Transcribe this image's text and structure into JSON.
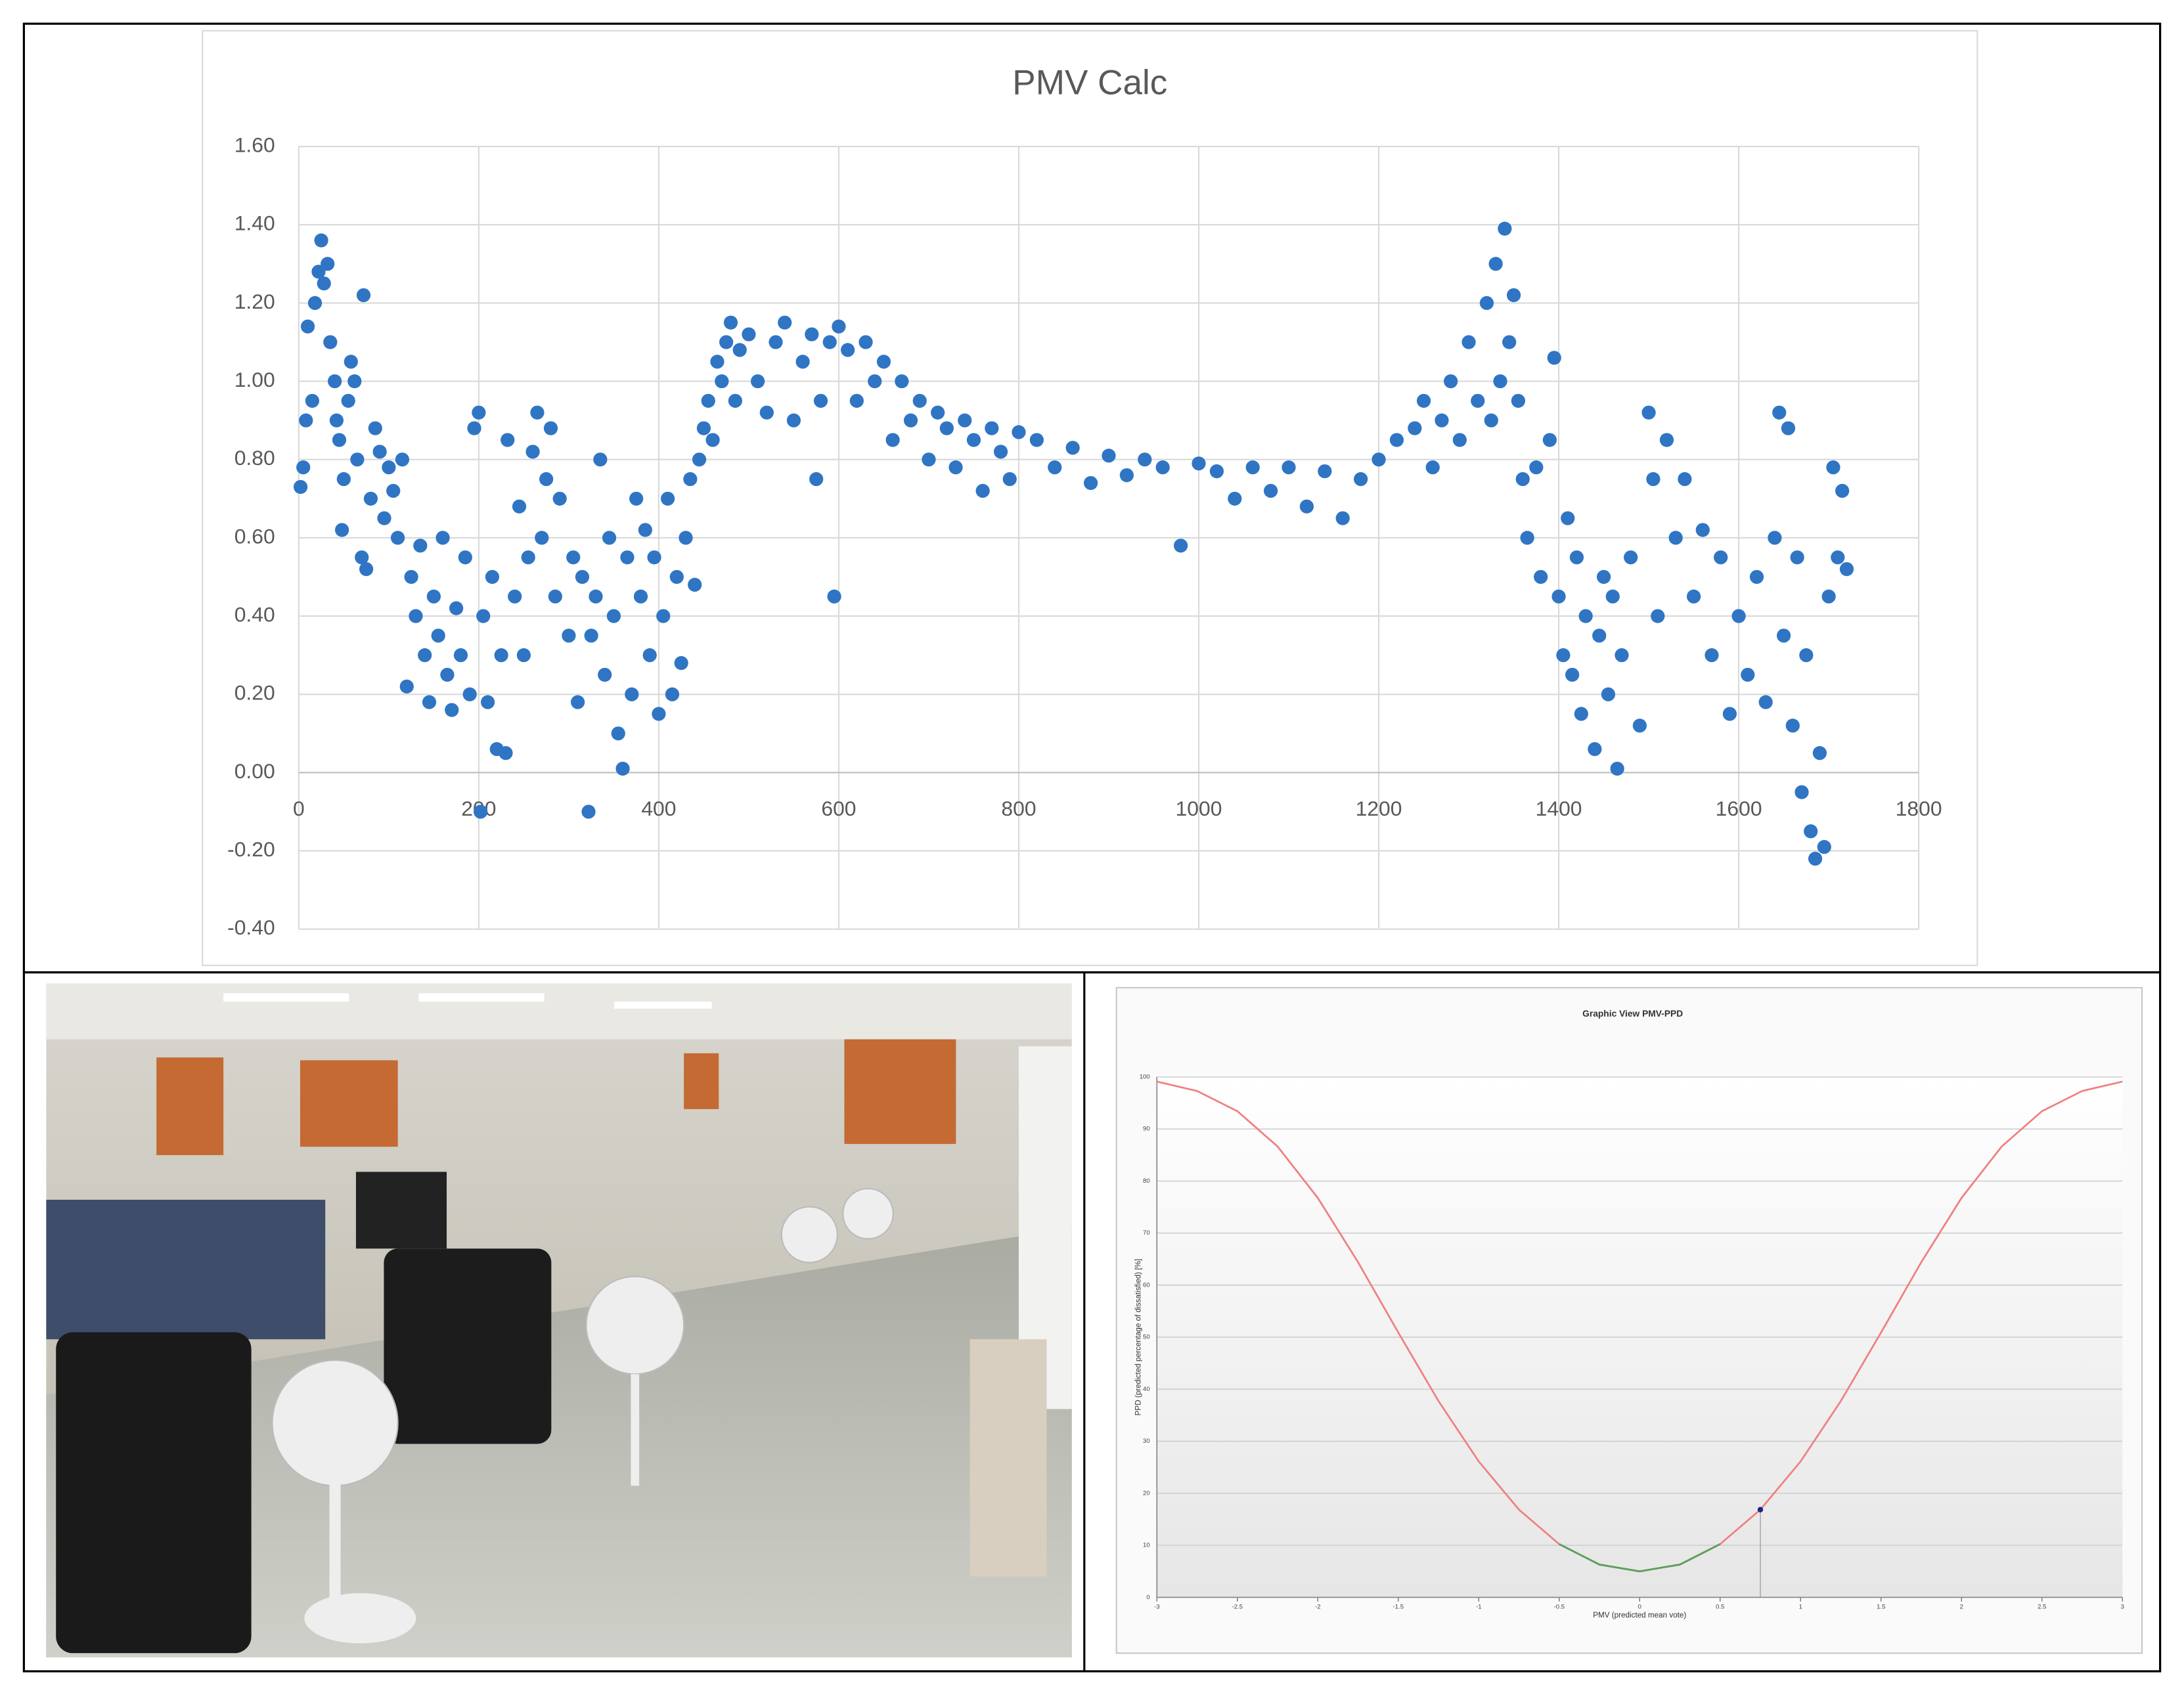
{
  "chart_data": [
    {
      "type": "scatter",
      "title": "PMV Calc",
      "color": "#2f75c4",
      "grid": true,
      "xlim": [
        0,
        1800
      ],
      "xticks": [
        0,
        200,
        400,
        600,
        800,
        1000,
        1200,
        1400,
        1600,
        1800
      ],
      "ylim": [
        -0.4,
        1.6
      ],
      "yticks": [
        {
          "value": -0.4,
          "label": "-0.40"
        },
        {
          "value": -0.2,
          "label": "-0.20"
        },
        {
          "value": 0,
          "label": "0.00"
        },
        {
          "value": 0.2,
          "label": "0.20"
        },
        {
          "value": 0.4,
          "label": "0.40"
        },
        {
          "value": 0.6,
          "label": "0.60"
        },
        {
          "value": 0.8,
          "label": "0.80"
        },
        {
          "value": 1.0,
          "label": "1.00"
        },
        {
          "value": 1.2,
          "label": "1.20"
        },
        {
          "value": 1.4,
          "label": "1.40"
        },
        {
          "value": 1.6,
          "label": "1.60"
        }
      ],
      "x": [
        2,
        5,
        8,
        10,
        15,
        18,
        22,
        25,
        28,
        32,
        35,
        40,
        42,
        45,
        48,
        50,
        55,
        58,
        62,
        65,
        70,
        72,
        75,
        80,
        85,
        90,
        95,
        100,
        105,
        110,
        115,
        120,
        125,
        130,
        135,
        140,
        145,
        150,
        155,
        160,
        165,
        170,
        175,
        180,
        185,
        190,
        195,
        200,
        202,
        205,
        210,
        215,
        220,
        225,
        230,
        232,
        240,
        245,
        250,
        255,
        260,
        265,
        270,
        275,
        280,
        285,
        290,
        300,
        305,
        310,
        315,
        322,
        325,
        330,
        335,
        340,
        345,
        350,
        355,
        360,
        365,
        370,
        375,
        380,
        385,
        390,
        395,
        400,
        405,
        410,
        415,
        420,
        425,
        430,
        435,
        440,
        445,
        450,
        455,
        460,
        465,
        470,
        475,
        480,
        485,
        490,
        500,
        510,
        520,
        530,
        540,
        550,
        560,
        570,
        575,
        580,
        590,
        595,
        600,
        610,
        620,
        630,
        640,
        650,
        660,
        670,
        680,
        690,
        700,
        710,
        720,
        730,
        740,
        750,
        760,
        770,
        780,
        790,
        800,
        820,
        840,
        860,
        880,
        900,
        920,
        940,
        960,
        980,
        1000,
        1020,
        1040,
        1060,
        1080,
        1100,
        1120,
        1140,
        1160,
        1180,
        1200,
        1220,
        1240,
        1250,
        1260,
        1270,
        1280,
        1290,
        1300,
        1310,
        1320,
        1325,
        1330,
        1335,
        1340,
        1345,
        1350,
        1355,
        1360,
        1365,
        1375,
        1380,
        1390,
        1395,
        1400,
        1405,
        1410,
        1415,
        1420,
        1425,
        1430,
        1440,
        1445,
        1450,
        1455,
        1460,
        1465,
        1470,
        1480,
        1490,
        1500,
        1505,
        1510,
        1520,
        1530,
        1540,
        1550,
        1560,
        1570,
        1580,
        1590,
        1600,
        1610,
        1620,
        1630,
        1640,
        1645,
        1650,
        1655,
        1660,
        1665,
        1670,
        1675,
        1680,
        1685,
        1690,
        1695,
        1700,
        1705,
        1710,
        1715,
        1720
      ],
      "values": [
        0.73,
        0.78,
        0.9,
        1.14,
        0.95,
        1.2,
        1.28,
        1.36,
        1.25,
        1.3,
        1.1,
        1.0,
        0.9,
        0.85,
        0.62,
        0.75,
        0.95,
        1.05,
        1.0,
        0.8,
        0.55,
        1.22,
        0.52,
        0.7,
        0.88,
        0.82,
        0.65,
        0.78,
        0.72,
        0.6,
        0.8,
        0.22,
        0.5,
        0.4,
        0.58,
        0.3,
        0.18,
        0.45,
        0.35,
        0.6,
        0.25,
        0.16,
        0.42,
        0.3,
        0.55,
        0.2,
        0.88,
        0.92,
        -0.1,
        0.4,
        0.18,
        0.5,
        0.06,
        0.3,
        0.05,
        0.85,
        0.45,
        0.68,
        0.3,
        0.55,
        0.82,
        0.92,
        0.6,
        0.75,
        0.88,
        0.45,
        0.7,
        0.35,
        0.55,
        0.18,
        0.5,
        -0.1,
        0.35,
        0.45,
        0.8,
        0.25,
        0.6,
        0.4,
        0.1,
        0.01,
        0.55,
        0.2,
        0.7,
        0.45,
        0.62,
        0.3,
        0.55,
        0.15,
        0.4,
        0.7,
        0.2,
        0.5,
        0.28,
        0.6,
        0.75,
        0.48,
        0.8,
        0.88,
        0.95,
        0.85,
        1.05,
        1.0,
        1.1,
        1.15,
        0.95,
        1.08,
        1.12,
        1.0,
        0.92,
        1.1,
        1.15,
        0.9,
        1.05,
        1.12,
        0.75,
        0.95,
        1.1,
        0.45,
        1.14,
        1.08,
        0.95,
        1.1,
        1.0,
        1.05,
        0.85,
        1.0,
        0.9,
        0.95,
        0.8,
        0.92,
        0.88,
        0.78,
        0.9,
        0.85,
        0.72,
        0.88,
        0.82,
        0.75,
        0.87,
        0.85,
        0.78,
        0.83,
        0.74,
        0.81,
        0.76,
        0.8,
        0.78,
        0.58,
        0.79,
        0.77,
        0.7,
        0.78,
        0.72,
        0.78,
        0.68,
        0.77,
        0.65,
        0.75,
        0.8,
        0.85,
        0.88,
        0.95,
        0.78,
        0.9,
        1.0,
        0.85,
        1.1,
        0.95,
        1.2,
        0.9,
        1.3,
        1.0,
        1.39,
        1.1,
        1.22,
        0.95,
        0.75,
        0.6,
        0.78,
        0.5,
        0.85,
        1.06,
        0.45,
        0.3,
        0.65,
        0.25,
        0.55,
        0.15,
        0.4,
        0.06,
        0.35,
        0.5,
        0.2,
        0.45,
        0.01,
        0.3,
        0.55,
        0.12,
        0.92,
        0.75,
        0.4,
        0.85,
        0.6,
        0.75,
        0.45,
        0.62,
        0.3,
        0.55,
        0.15,
        0.4,
        0.25,
        0.5,
        0.18,
        0.6,
        0.92,
        0.35,
        0.88,
        0.12,
        0.55,
        -0.05,
        0.3,
        -0.15,
        -0.22,
        0.05,
        -0.19,
        0.45,
        0.78,
        0.55,
        0.72,
        0.52
      ]
    },
    {
      "type": "line",
      "title": "Graphic View PMV-PPD",
      "x_label": "PMV (predicted mean vote)",
      "y_label": "PPD (predicted percentage of dissatisfied) [%]",
      "grid": true,
      "xlim": [
        -3,
        3
      ],
      "xticks": [
        -3,
        -2.5,
        -2,
        -1.5,
        -1,
        -0.5,
        0,
        0.5,
        1,
        1.5,
        2,
        2.5,
        3
      ],
      "ylim": [
        0,
        100
      ],
      "yticks": [
        0,
        10,
        20,
        30,
        40,
        50,
        60,
        70,
        80,
        90,
        100
      ],
      "x": [
        -3,
        -2.75,
        -2.5,
        -2.25,
        -2,
        -1.75,
        -1.5,
        -1.25,
        -1,
        -0.75,
        -0.5,
        -0.25,
        0,
        0.25,
        0.5,
        0.75,
        1,
        1.25,
        1.5,
        1.75,
        2,
        2.25,
        2.5,
        2.75,
        3
      ],
      "series": [
        {
          "color": "#f08080",
          "values": [
            99.12,
            97.31,
            93.43,
            86.65,
            76.76,
            64.41,
            50.9,
            37.72,
            26.12,
            16.85,
            10.23,
            6.3,
            5,
            6.3,
            10.23,
            16.85,
            26.12,
            37.72,
            50.9,
            64.41,
            76.76,
            86.65,
            93.43,
            97.31,
            99.12
          ]
        },
        {
          "color": "#5aa05a",
          "values": [
            null,
            null,
            null,
            null,
            null,
            null,
            null,
            null,
            null,
            null,
            10.23,
            6.3,
            5,
            6.3,
            10.23,
            null,
            null,
            null,
            null,
            null,
            null,
            null,
            null,
            null,
            null
          ]
        }
      ],
      "marker": {
        "x": 0.75,
        "y": 16.85,
        "color": "#1a2a80"
      }
    }
  ]
}
